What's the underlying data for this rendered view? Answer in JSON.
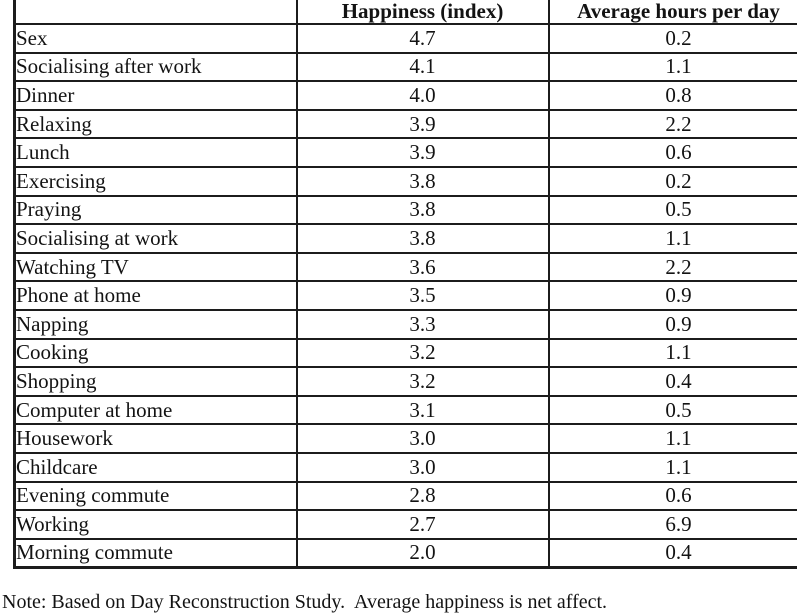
{
  "page": {
    "background": "#ffffff",
    "text_color": "#131313",
    "border_color": "#1c1c1c"
  },
  "table": {
    "columns": [
      "",
      "Happiness (index)",
      "Average hours per day"
    ],
    "rows": [
      {
        "activity": "Sex",
        "happiness": "4.7",
        "hours": "0.2"
      },
      {
        "activity": "Socialising after work",
        "happiness": "4.1",
        "hours": "1.1"
      },
      {
        "activity": "Dinner",
        "happiness": "4.0",
        "hours": "0.8"
      },
      {
        "activity": "Relaxing",
        "happiness": "3.9",
        "hours": "2.2"
      },
      {
        "activity": "Lunch",
        "happiness": "3.9",
        "hours": "0.6"
      },
      {
        "activity": "Exercising",
        "happiness": "3.8",
        "hours": "0.2"
      },
      {
        "activity": "Praying",
        "happiness": "3.8",
        "hours": "0.5"
      },
      {
        "activity": "Socialising at work",
        "happiness": "3.8",
        "hours": "1.1"
      },
      {
        "activity": "Watching TV",
        "happiness": "3.6",
        "hours": "2.2"
      },
      {
        "activity": "Phone at home",
        "happiness": "3.5",
        "hours": "0.9"
      },
      {
        "activity": "Napping",
        "happiness": "3.3",
        "hours": "0.9"
      },
      {
        "activity": "Cooking",
        "happiness": "3.2",
        "hours": "1.1"
      },
      {
        "activity": "Shopping",
        "happiness": "3.2",
        "hours": "0.4"
      },
      {
        "activity": "Computer at home",
        "happiness": "3.1",
        "hours": "0.5"
      },
      {
        "activity": "Housework",
        "happiness": "3.0",
        "hours": "1.1"
      },
      {
        "activity": "Childcare",
        "happiness": "3.0",
        "hours": "1.1"
      },
      {
        "activity": "Evening commute",
        "happiness": "2.8",
        "hours": "0.6"
      },
      {
        "activity": "Working",
        "happiness": "2.7",
        "hours": "6.9"
      },
      {
        "activity": "Morning commute",
        "happiness": "2.0",
        "hours": "0.4"
      }
    ]
  },
  "note": "Note: Based on Day Reconstruction Study.  Average happiness is net affect."
}
